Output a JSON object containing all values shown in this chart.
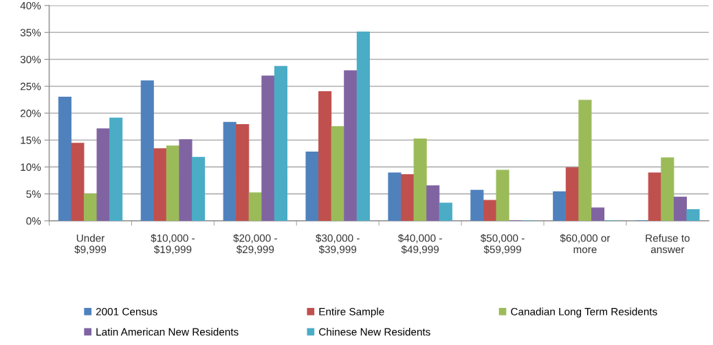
{
  "chart_data": {
    "type": "bar",
    "categories": [
      "Under\n$9,999",
      "$10,000 -\n$19,999",
      "$20,000 -\n$29,999",
      "$30,000 -\n$39,999",
      "$40,000 -\n$49,999",
      "$50,000 -\n$59,999",
      "$60,000 or\nmore",
      "Refuse to\nanswer"
    ],
    "series": [
      {
        "name": "2001 Census",
        "color": "#4f81bd",
        "values": [
          23.0,
          26.0,
          18.3,
          12.8,
          8.9,
          5.7,
          5.4,
          0
        ]
      },
      {
        "name": "Entire Sample",
        "color": "#c0504d",
        "values": [
          14.4,
          13.4,
          17.9,
          24.0,
          8.6,
          3.8,
          9.9,
          8.9
        ]
      },
      {
        "name": "Canadian Long Term Residents",
        "color": "#9bbb59",
        "values": [
          5.0,
          13.9,
          5.2,
          17.5,
          15.2,
          9.4,
          22.4,
          11.7
        ]
      },
      {
        "name": "Latin American New Residents",
        "color": "#8064a2",
        "values": [
          17.1,
          15.1,
          26.9,
          27.9,
          6.5,
          0,
          2.4,
          4.4
        ]
      },
      {
        "name": "Chinese New Residents",
        "color": "#4bacc6",
        "values": [
          19.1,
          11.8,
          28.7,
          35.1,
          3.3,
          0,
          0,
          2.1
        ]
      }
    ],
    "ylim": [
      0,
      40
    ],
    "yticks": [
      {
        "value": 0,
        "label": "0%"
      },
      {
        "value": 5,
        "label": "5%"
      },
      {
        "value": 10,
        "label": "10%"
      },
      {
        "value": 15,
        "label": "15%"
      },
      {
        "value": 20,
        "label": "20%"
      },
      {
        "value": 25,
        "label": "25%"
      },
      {
        "value": 30,
        "label": "30%"
      },
      {
        "value": 35,
        "label": "35%"
      },
      {
        "value": 40,
        "label": "40%"
      }
    ],
    "grid": "y",
    "legend": "bottom"
  }
}
